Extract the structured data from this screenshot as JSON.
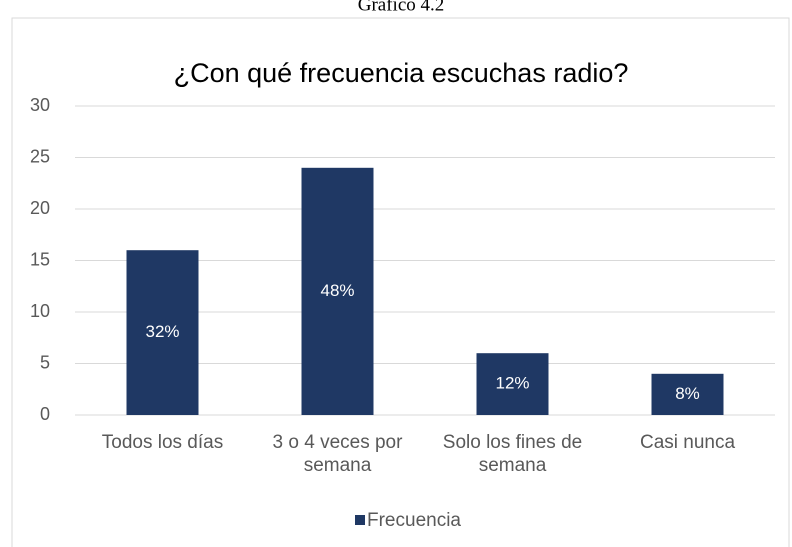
{
  "caption": "Gráfico 4.2",
  "chart_data": {
    "type": "bar",
    "title": "¿Con qué frecuencia escuchas radio?",
    "categories": [
      "Todos los días",
      "3 o 4 veces por semana",
      "Solo los fines de semana",
      "Casi nunca"
    ],
    "series": [
      {
        "name": "Frecuencia",
        "color": "#1f3864",
        "values": [
          16,
          24,
          6,
          4
        ],
        "value_labels": [
          "32%",
          "48%",
          "12%",
          "8%"
        ]
      }
    ],
    "ylim": [
      0,
      30
    ],
    "yticks": [
      0,
      5,
      10,
      15,
      20,
      25,
      30
    ],
    "grid": true,
    "legend": "bottom"
  }
}
